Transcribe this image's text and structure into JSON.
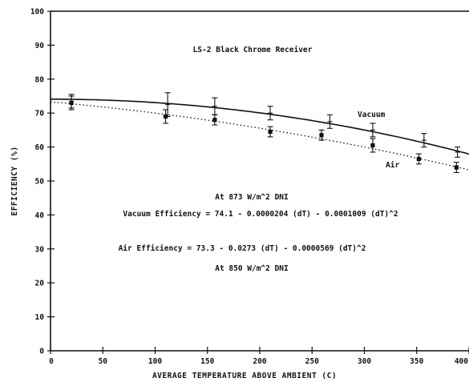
{
  "chart_data": {
    "type": "scatter",
    "title": "LS-2 Black Chrome Receiver",
    "xlabel": "AVERAGE TEMPERATURE ABOVE AMBIENT   (C)",
    "ylabel": "EFFICIENCY   (%)",
    "xlim": [
      0,
      400
    ],
    "ylim": [
      0,
      100
    ],
    "x_ticks": [
      0,
      50,
      100,
      150,
      200,
      250,
      300,
      350,
      400
    ],
    "y_ticks": [
      0,
      10,
      20,
      30,
      40,
      50,
      60,
      70,
      80,
      90,
      100
    ],
    "x_tick_labels": [
      "0",
      "50",
      "100",
      "150",
      "200",
      "250",
      "300",
      "350",
      "400"
    ],
    "y_tick_labels": [
      "0",
      "10",
      "20",
      "30",
      "40",
      "50",
      "60",
      "70",
      "80",
      "90",
      "100"
    ],
    "grid": false,
    "series": [
      {
        "name": "Vacuum",
        "marker": "plus",
        "fit_line": "solid",
        "x": [
          20,
          112,
          157,
          210,
          267,
          308,
          357,
          389
        ],
        "y": [
          73.5,
          72.5,
          72,
          70,
          67.5,
          65,
          62,
          58.5
        ],
        "err": [
          2,
          3.5,
          2.5,
          2,
          2,
          2,
          2,
          1.5
        ]
      },
      {
        "name": "Air",
        "marker": "filled",
        "fit_line": "dotted",
        "x": [
          20,
          110,
          157,
          210,
          259,
          308,
          352,
          388
        ],
        "y": [
          73,
          69,
          68,
          64.5,
          63.5,
          60.5,
          56.5,
          54
        ],
        "err": [
          2,
          2,
          1.5,
          1.5,
          1.5,
          2,
          1.5,
          1.5
        ]
      }
    ],
    "fits": {
      "vacuum": [
        74.1,
        -2.04e-05,
        -0.0001009
      ],
      "air": [
        73.3,
        -0.0273,
        -5.69e-05
      ]
    },
    "annotations": {
      "vacuum_dni": "At 873 W/m^2 DNI",
      "vacuum_equation": "Vacuum Efficiency = 74.1 - 0.0000204 (dT) - 0.0001009 (dT)^2",
      "air_equation": "Air Efficiency = 73.3 - 0.0273 (dT) - 0.0000569 (dT)^2",
      "air_dni": "At 850 W/m^2 DNI",
      "vacuum_label": "Vacuum",
      "air_label": "Air"
    }
  }
}
